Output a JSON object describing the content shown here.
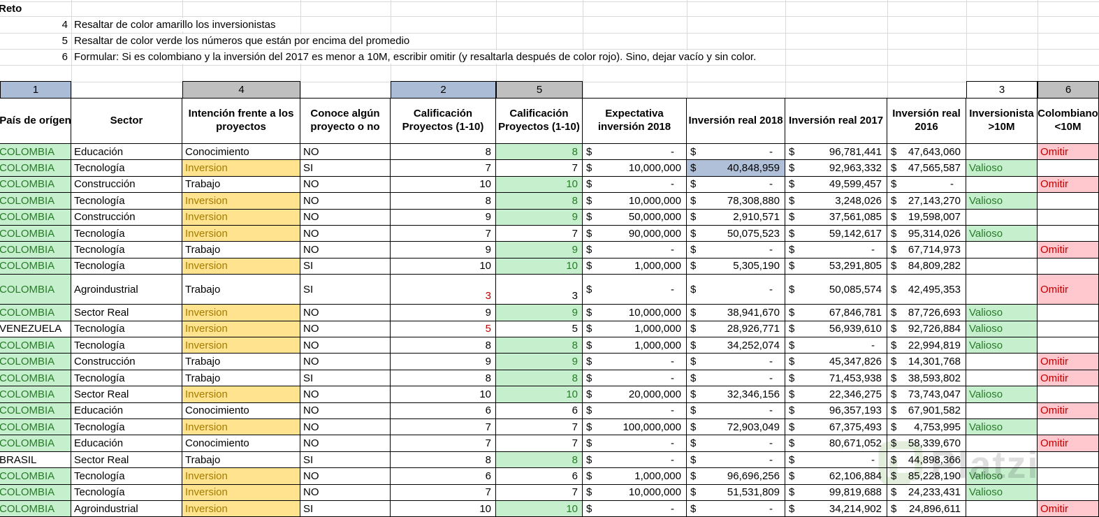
{
  "sheet": {
    "instructions": {
      "title": "Reto",
      "items": [
        {
          "num": "4",
          "text": "Resaltar de color amarillo los inversionistas"
        },
        {
          "num": "5",
          "text": "Resaltar de color verde los números que están por encima del promedio"
        },
        {
          "num": "6",
          "text": "Formular: Si es colombiano y la inversión del 2017 es menor a 10M, escribir omitir (y resaltarla después de color rojo). Sino, dejar vacío y sin color."
        }
      ]
    },
    "column_tags": [
      {
        "label": "1",
        "col": 0,
        "style": "blue"
      },
      {
        "label": "4",
        "col": 2,
        "style": "gray"
      },
      {
        "label": "2",
        "col": 4,
        "style": "blue"
      },
      {
        "label": "5",
        "col": 5,
        "style": "gray"
      },
      {
        "label": "3",
        "col": 10,
        "style": "white"
      },
      {
        "label": "6",
        "col": 11,
        "style": "gray"
      }
    ],
    "currency_symbol": "$",
    "headers": [
      "País de orígen",
      "Sector",
      "Intención frente a los proyectos",
      "Conoce algún proyecto o no",
      "Calificación Proyectos (1-10)",
      "Calificación Proyectos (1-10)",
      "Expectativa inversión 2018",
      "Inversión real 2018",
      "Inversión real 2017",
      "Inversión real 2016",
      "Inversionista >10M",
      "Colombiano <10M"
    ],
    "rows": [
      {
        "pais": "COLOMBIA",
        "pais_good": true,
        "sector": "Educación",
        "intencion": "Conocimiento",
        "intencion_yellow": false,
        "conoce": "NO",
        "cal1": "8",
        "cal1_red": false,
        "cal2": "8",
        "cal2_green": true,
        "expectativa": "-",
        "inv2018": "-",
        "inv2018_selected": false,
        "inv2017": "96,781,441",
        "inv2016": "47,643,060",
        "inversionista": "",
        "colombiano": "Omitir",
        "tall": false
      },
      {
        "pais": "COLOMBIA",
        "pais_good": true,
        "sector": "Tecnología",
        "intencion": "Inversion",
        "intencion_yellow": true,
        "conoce": "SI",
        "cal1": "7",
        "cal1_red": false,
        "cal2": "7",
        "cal2_green": false,
        "expectativa": "10,000,000",
        "inv2018": "40,848,959",
        "inv2018_selected": true,
        "inv2017": "92,963,332",
        "inv2016": "47,565,587",
        "inversionista": "Valioso",
        "colombiano": "",
        "tall": false
      },
      {
        "pais": "COLOMBIA",
        "pais_good": true,
        "sector": "Construcción",
        "intencion": "Trabajo",
        "intencion_yellow": false,
        "conoce": "NO",
        "cal1": "10",
        "cal1_red": false,
        "cal2": "10",
        "cal2_green": true,
        "expectativa": "-",
        "inv2018": "-",
        "inv2018_selected": false,
        "inv2017": "49,599,457",
        "inv2016": "-",
        "inversionista": "",
        "colombiano": "Omitir",
        "tall": false
      },
      {
        "pais": "COLOMBIA",
        "pais_good": true,
        "sector": "Tecnología",
        "intencion": "Inversion",
        "intencion_yellow": true,
        "conoce": "NO",
        "cal1": "8",
        "cal1_red": false,
        "cal2": "8",
        "cal2_green": true,
        "expectativa": "10,000,000",
        "inv2018": "78,308,880",
        "inv2018_selected": false,
        "inv2017": "3,248,026",
        "inv2016": "27,143,270",
        "inversionista": "Valioso",
        "colombiano": "",
        "tall": false
      },
      {
        "pais": "COLOMBIA",
        "pais_good": true,
        "sector": "Construcción",
        "intencion": "Inversion",
        "intencion_yellow": true,
        "conoce": "NO",
        "cal1": "9",
        "cal1_red": false,
        "cal2": "9",
        "cal2_green": true,
        "expectativa": "50,000,000",
        "inv2018": "2,910,571",
        "inv2018_selected": false,
        "inv2017": "37,561,085",
        "inv2016": "19,598,007",
        "inversionista": "",
        "colombiano": "",
        "tall": false
      },
      {
        "pais": "COLOMBIA",
        "pais_good": true,
        "sector": "Tecnología",
        "intencion": "Inversion",
        "intencion_yellow": true,
        "conoce": "NO",
        "cal1": "7",
        "cal1_red": false,
        "cal2": "7",
        "cal2_green": false,
        "expectativa": "90,000,000",
        "inv2018": "50,075,523",
        "inv2018_selected": false,
        "inv2017": "59,142,617",
        "inv2016": "95,314,026",
        "inversionista": "Valioso",
        "colombiano": "",
        "tall": false
      },
      {
        "pais": "COLOMBIA",
        "pais_good": true,
        "sector": "Tecnología",
        "intencion": "Trabajo",
        "intencion_yellow": false,
        "conoce": "NO",
        "cal1": "9",
        "cal1_red": false,
        "cal2": "9",
        "cal2_green": true,
        "expectativa": "-",
        "inv2018": "-",
        "inv2018_selected": false,
        "inv2017": "-",
        "inv2016": "67,714,973",
        "inversionista": "",
        "colombiano": "Omitir",
        "tall": false
      },
      {
        "pais": "COLOMBIA",
        "pais_good": true,
        "sector": "Tecnología",
        "intencion": "Inversion",
        "intencion_yellow": true,
        "conoce": "SI",
        "cal1": "10",
        "cal1_red": false,
        "cal2": "10",
        "cal2_green": true,
        "expectativa": "1,000,000",
        "inv2018": "5,305,190",
        "inv2018_selected": false,
        "inv2017": "53,291,805",
        "inv2016": "84,809,282",
        "inversionista": "",
        "colombiano": "",
        "tall": false
      },
      {
        "pais": "COLOMBIA",
        "pais_good": true,
        "sector": "Agroindustrial",
        "intencion": "Trabajo",
        "intencion_yellow": false,
        "conoce": "SI",
        "cal1": "3",
        "cal1_red": true,
        "cal2": "3",
        "cal2_green": false,
        "expectativa": "-",
        "inv2018": "-",
        "inv2018_selected": false,
        "inv2017": "50,085,574",
        "inv2016": "42,495,353",
        "inversionista": "",
        "colombiano": "Omitir",
        "tall": true
      },
      {
        "pais": "COLOMBIA",
        "pais_good": true,
        "sector": "Sector Real",
        "intencion": "Inversion",
        "intencion_yellow": true,
        "conoce": "NO",
        "cal1": "9",
        "cal1_red": false,
        "cal2": "9",
        "cal2_green": true,
        "expectativa": "10,000,000",
        "inv2018": "38,941,670",
        "inv2018_selected": false,
        "inv2017": "67,846,781",
        "inv2016": "87,726,693",
        "inversionista": "Valioso",
        "colombiano": "",
        "tall": false
      },
      {
        "pais": "VENEZUELA",
        "pais_good": false,
        "sector": "Tecnología",
        "intencion": "Inversion",
        "intencion_yellow": true,
        "conoce": "NO",
        "cal1": "5",
        "cal1_red": true,
        "cal2": "5",
        "cal2_green": false,
        "expectativa": "1,000,000",
        "inv2018": "28,926,771",
        "inv2018_selected": false,
        "inv2017": "56,939,610",
        "inv2016": "92,726,884",
        "inversionista": "Valioso",
        "colombiano": "",
        "tall": false
      },
      {
        "pais": "COLOMBIA",
        "pais_good": true,
        "sector": "Tecnología",
        "intencion": "Inversion",
        "intencion_yellow": true,
        "conoce": "NO",
        "cal1": "8",
        "cal1_red": false,
        "cal2": "8",
        "cal2_green": true,
        "expectativa": "1,000,000",
        "inv2018": "34,252,074",
        "inv2018_selected": false,
        "inv2017": "-",
        "inv2016": "22,994,819",
        "inversionista": "Valioso",
        "colombiano": "",
        "tall": false
      },
      {
        "pais": "COLOMBIA",
        "pais_good": true,
        "sector": "Construcción",
        "intencion": "Trabajo",
        "intencion_yellow": false,
        "conoce": "NO",
        "cal1": "9",
        "cal1_red": false,
        "cal2": "9",
        "cal2_green": true,
        "expectativa": "-",
        "inv2018": "-",
        "inv2018_selected": false,
        "inv2017": "45,347,826",
        "inv2016": "14,301,768",
        "inversionista": "",
        "colombiano": "Omitir",
        "tall": false
      },
      {
        "pais": "COLOMBIA",
        "pais_good": true,
        "sector": "Tecnología",
        "intencion": "Trabajo",
        "intencion_yellow": false,
        "conoce": "SI",
        "cal1": "8",
        "cal1_red": false,
        "cal2": "8",
        "cal2_green": true,
        "expectativa": "-",
        "inv2018": "-",
        "inv2018_selected": false,
        "inv2017": "71,453,938",
        "inv2016": "38,593,802",
        "inversionista": "",
        "colombiano": "Omitir",
        "tall": false
      },
      {
        "pais": "COLOMBIA",
        "pais_good": true,
        "sector": "Sector Real",
        "intencion": "Inversion",
        "intencion_yellow": true,
        "conoce": "NO",
        "cal1": "10",
        "cal1_red": false,
        "cal2": "10",
        "cal2_green": true,
        "expectativa": "20,000,000",
        "inv2018": "32,346,156",
        "inv2018_selected": false,
        "inv2017": "22,346,275",
        "inv2016": "73,743,047",
        "inversionista": "Valioso",
        "colombiano": "",
        "tall": false
      },
      {
        "pais": "COLOMBIA",
        "pais_good": true,
        "sector": "Educación",
        "intencion": "Conocimiento",
        "intencion_yellow": false,
        "conoce": "NO",
        "cal1": "6",
        "cal1_red": false,
        "cal2": "6",
        "cal2_green": false,
        "expectativa": "-",
        "inv2018": "-",
        "inv2018_selected": false,
        "inv2017": "96,357,193",
        "inv2016": "67,901,582",
        "inversionista": "",
        "colombiano": "Omitir",
        "tall": false
      },
      {
        "pais": "COLOMBIA",
        "pais_good": true,
        "sector": "Tecnología",
        "intencion": "Inversion",
        "intencion_yellow": true,
        "conoce": "NO",
        "cal1": "7",
        "cal1_red": false,
        "cal2": "7",
        "cal2_green": false,
        "expectativa": "100,000,000",
        "inv2018": "72,903,049",
        "inv2018_selected": false,
        "inv2017": "67,375,493",
        "inv2016": "4,753,995",
        "inversionista": "Valioso",
        "colombiano": "",
        "tall": false
      },
      {
        "pais": "COLOMBIA",
        "pais_good": true,
        "sector": "Educación",
        "intencion": "Conocimiento",
        "intencion_yellow": false,
        "conoce": "NO",
        "cal1": "7",
        "cal1_red": false,
        "cal2": "7",
        "cal2_green": false,
        "expectativa": "-",
        "inv2018": "-",
        "inv2018_selected": false,
        "inv2017": "80,671,052",
        "inv2016": "58,339,670",
        "inversionista": "",
        "colombiano": "Omitir",
        "tall": false
      },
      {
        "pais": "BRASIL",
        "pais_good": false,
        "sector": "Sector Real",
        "intencion": "Trabajo",
        "intencion_yellow": false,
        "conoce": "SI",
        "cal1": "8",
        "cal1_red": false,
        "cal2": "8",
        "cal2_green": true,
        "expectativa": "-",
        "inv2018": "-",
        "inv2018_selected": false,
        "inv2017": "-",
        "inv2016": "44,898,366",
        "inversionista": "",
        "colombiano": "",
        "tall": false
      },
      {
        "pais": "COLOMBIA",
        "pais_good": true,
        "sector": "Tecnología",
        "intencion": "Inversion",
        "intencion_yellow": true,
        "conoce": "NO",
        "cal1": "6",
        "cal1_red": false,
        "cal2": "6",
        "cal2_green": false,
        "expectativa": "1,000,000",
        "inv2018": "96,696,256",
        "inv2018_selected": false,
        "inv2017": "62,106,884",
        "inv2016": "85,228,190",
        "inversionista": "Valioso",
        "colombiano": "",
        "tall": false
      },
      {
        "pais": "COLOMBIA",
        "pais_good": true,
        "sector": "Tecnología",
        "intencion": "Inversion",
        "intencion_yellow": true,
        "conoce": "NO",
        "cal1": "7",
        "cal1_red": false,
        "cal2": "7",
        "cal2_green": false,
        "expectativa": "10,000,000",
        "inv2018": "51,531,809",
        "inv2018_selected": false,
        "inv2017": "99,819,688",
        "inv2016": "24,233,431",
        "inversionista": "Valioso",
        "colombiano": "",
        "tall": false
      },
      {
        "pais": "COLOMBIA",
        "pais_good": true,
        "sector": "Agroindustrial",
        "intencion": "Inversion",
        "intencion_yellow": true,
        "conoce": "SI",
        "cal1": "10",
        "cal1_red": false,
        "cal2": "10",
        "cal2_green": true,
        "expectativa": "-",
        "inv2018": "-",
        "inv2018_selected": false,
        "inv2017": "34,214,902",
        "inv2016": "24,896,611",
        "inversionista": "",
        "colombiano": "Omitir",
        "tall": false
      }
    ],
    "watermark": {
      "text": "Platzi"
    },
    "colors": {
      "good_bg": "#c6efce",
      "good_text": "#277c27",
      "neutral_bg": "#ffe38f",
      "neutral_text": "#a47d00",
      "bad_bg": "#ffc7ce",
      "bad_text": "#c00000",
      "selected_bg": "#afc0d8",
      "tag_blue": "#abbdd6",
      "tag_gray": "#bfbfbf"
    }
  }
}
